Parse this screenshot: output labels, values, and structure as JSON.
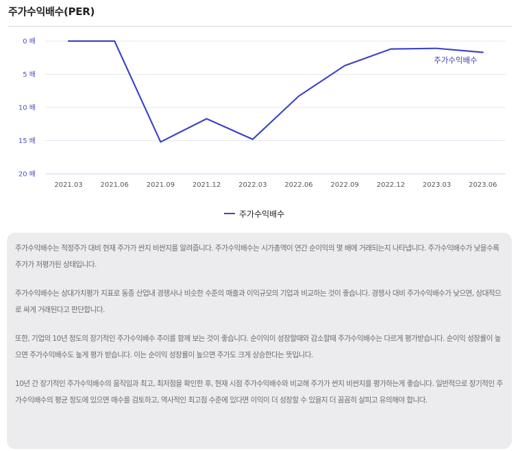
{
  "title": "주가수익배수(PER)",
  "chart_data": {
    "type": "line",
    "x": [
      "2021.03",
      "2021.06",
      "2021.09",
      "2021.12",
      "2022.03",
      "2022.06",
      "2022.09",
      "2022.12",
      "2023.03",
      "2023.06"
    ],
    "series": [
      {
        "name": "주가수익배수",
        "values": [
          0,
          0,
          15.2,
          11.7,
          14.8,
          8.3,
          3.7,
          1.2,
          1.1,
          1.7
        ],
        "color": "#3d44c8"
      }
    ],
    "y_ticks": [
      "0 배",
      "5 배",
      "10 배",
      "15 배",
      "20 배"
    ],
    "ylim": [
      0,
      20
    ],
    "y_inverted": true,
    "grid": true,
    "legend": "bottom-center",
    "series_label": "주가수익배수"
  },
  "legend_label": "주가수익배수",
  "description": [
    "주가수익배수는 적정주가 대비 현재 주가가 싼지 비싼지를 알려줍니다. 주가수익배수는 시가총액이 연간 순이익의 몇 배에 거래되는지 나타냅니다. 주가수익배수가 낮을수록 주가가 저평가된 상태입니다.",
    "주가수익배수는 상대가치평가 지표로 동종 산업내 경쟁사나 비슷한 수준의 매출과 이익규모의 기업과 비교하는 것이 좋습니다. 경쟁사 대비 주가수익배수가 낮으면, 상대적으로 싸게 거래된다고 판단합니다.",
    "또한, 기업의 10년 정도의 장기적인 주가수익배수 추이를 함께 보는 것이 좋습니다. 순이익이 성장할때와 감소할때 주가수익배수는 다르게 평가받습니다. 순이익 성장률이 높으면 주가수익배수도 높게 평가 받습니다. 이는 순이익 성장률이 높으면 주가도 크게 상승한다는 뜻입니다.",
    "10년 간 장기적인 주가수익배수의 움직임과 최고, 최저점을 확인한 후, 현재 시점 주가수익배수와 비교해 주가가 싼지 비싼지를 평가하는게 좋습니다. 일반적으로 장기적인 주가수익배수의 평균 정도에 있으면 매수를 검토하고, 역사적인 최고점 수준에 있다면 이익이 더 성장할 수 있을지 더 꼼꼼히 살피고 유의해야 합니다."
  ]
}
